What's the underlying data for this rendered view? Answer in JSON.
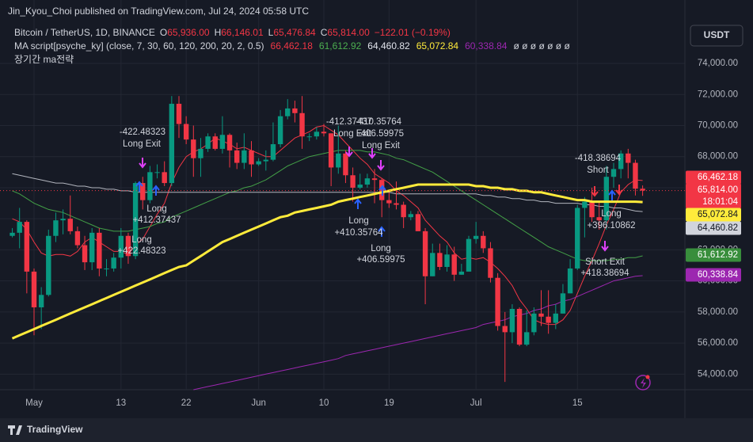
{
  "header": {
    "published": "Jin_Kyou_Choi published on TradingView.com, Jul 24, 2024 05:58 UTC",
    "symbol": "Bitcoin / TetherUS, 1D, BINANCE",
    "o_label": "O",
    "o": "65,936.00",
    "h_label": "H",
    "h": "66,146.01",
    "l_label": "L",
    "l": "65,476.84",
    "c_label": "C",
    "c": "65,814.00",
    "change": "−122.01 (−0.19%)",
    "indicator": "MA script[psyche_ky] (close, 7, 30, 60, 120, 200, 20, 2, 0.5)",
    "ind_values": [
      "66,462.18",
      "61,612.92",
      "64,460.82",
      "65,072.84",
      "60,338.84"
    ],
    "ind_empty": "ø ø ø ø ø ø ø",
    "strategy": "장기간 ma전략",
    "currency": "USDT",
    "countdown": "18:01:04",
    "brand": "TradingView"
  },
  "chart_data": {
    "type": "candlestick",
    "categories": [
      null,
      null,
      null,
      "May",
      null,
      null,
      null,
      null,
      null,
      null,
      null,
      null,
      null,
      null,
      null,
      "13",
      null,
      null,
      null,
      null,
      null,
      null,
      null,
      null,
      "22",
      null,
      null,
      null,
      null,
      null,
      null,
      null,
      null,
      null,
      "Jun",
      null,
      null,
      null,
      null,
      null,
      null,
      null,
      null,
      "10",
      null,
      null,
      null,
      null,
      null,
      null,
      null,
      null,
      "19",
      null,
      null,
      null,
      null,
      null,
      null,
      null,
      null,
      null,
      null,
      null,
      "Jul",
      null,
      null,
      null,
      null,
      null,
      null,
      null,
      null,
      null,
      null,
      null,
      null,
      null,
      "15",
      null,
      null,
      null,
      null,
      null,
      null,
      null,
      null,
      null
    ],
    "open": [
      62900,
      63100,
      63800,
      60600,
      58300,
      59100,
      62900,
      63900,
      64000,
      63200,
      62300,
      61200,
      63100,
      60800,
      60800,
      61500,
      62900,
      61600,
      66300,
      65200,
      67000,
      67000,
      66300,
      71400,
      70100,
      69100,
      67900,
      68500,
      69300,
      68500,
      69400,
      68400,
      67600,
      68400,
      67500,
      67700,
      67800,
      68800,
      70600,
      71100,
      70800,
      69300,
      69300,
      69600,
      69500,
      67300,
      68200,
      66800,
      66000,
      66200,
      66600,
      66500,
      65200,
      65000,
      64900,
      64100,
      64300,
      63200,
      60300,
      61800,
      60900,
      61700,
      60400,
      60600,
      62700,
      62900,
      62100,
      60200,
      57100,
      56700,
      58200,
      55900,
      56700,
      57900,
      57700,
      57300,
      57900,
      59200,
      60800,
      64700,
      65100,
      64100,
      63900,
      66700,
      67200,
      68200,
      67600,
      65936
    ],
    "high": [
      63400,
      64700,
      63900,
      60800,
      59600,
      63300,
      64400,
      64600,
      65500,
      63500,
      62900,
      63400,
      63400,
      61400,
      61800,
      63400,
      63100,
      66400,
      66700,
      67400,
      67500,
      67700,
      71900,
      71900,
      70600,
      70000,
      69200,
      69500,
      69500,
      70600,
      69500,
      68900,
      69500,
      69000,
      67900,
      68400,
      70200,
      71000,
      71700,
      71600,
      71900,
      69500,
      69900,
      70100,
      69500,
      70000,
      68400,
      67300,
      66900,
      66900,
      67200,
      66600,
      65700,
      66400,
      65100,
      64500,
      64500,
      63400,
      62400,
      62400,
      62300,
      62200,
      61100,
      62900,
      63800,
      63200,
      62500,
      60500,
      58000,
      58500,
      58300,
      58100,
      58300,
      59400,
      59400,
      58500,
      59800,
      61400,
      64900,
      65400,
      66000,
      65100,
      67400,
      67600,
      68400,
      68500,
      67800,
      66146.01
    ],
    "low": [
      62800,
      62100,
      59200,
      56500,
      56900,
      59000,
      62500,
      63000,
      63000,
      62100,
      60700,
      60700,
      60300,
      60300,
      60600,
      60800,
      61100,
      61400,
      64600,
      65000,
      66600,
      66100,
      66100,
      69200,
      68800,
      66700,
      66700,
      68300,
      68400,
      68200,
      67300,
      67200,
      67200,
      66700,
      67400,
      67100,
      67700,
      68600,
      70400,
      70200,
      68500,
      69000,
      69100,
      69300,
      66100,
      66900,
      66300,
      65100,
      65900,
      66000,
      65000,
      64100,
      64700,
      64600,
      63400,
      63900,
      63200,
      58500,
      60300,
      60700,
      60600,
      60000,
      60400,
      60600,
      62400,
      61800,
      59900,
      56800,
      53500,
      56000,
      55800,
      55800,
      56500,
      57100,
      56600,
      56900,
      57900,
      59200,
      60700,
      62800,
      63800,
      63300,
      63300,
      66000,
      66600,
      66600,
      65500,
      65476.84
    ],
    "close": [
      63100,
      63800,
      60600,
      58300,
      59100,
      62900,
      63900,
      64000,
      63200,
      62300,
      61200,
      63100,
      60800,
      60800,
      61500,
      62900,
      61600,
      66300,
      65200,
      67000,
      67000,
      66300,
      71400,
      70100,
      69100,
      67900,
      68500,
      69300,
      68500,
      69400,
      68400,
      67600,
      68400,
      67500,
      67700,
      67800,
      68800,
      70600,
      71100,
      70800,
      69300,
      69300,
      69600,
      69500,
      67300,
      68200,
      66800,
      66000,
      66200,
      66600,
      66500,
      65200,
      65000,
      64900,
      64100,
      64300,
      63200,
      60300,
      61800,
      60900,
      61700,
      60400,
      60600,
      62700,
      62900,
      62100,
      60200,
      57100,
      56700,
      58200,
      55900,
      56700,
      57900,
      57700,
      57300,
      57900,
      59200,
      60800,
      64700,
      65100,
      64100,
      63900,
      66700,
      67200,
      68200,
      67600,
      65936,
      65814
    ],
    "up_color": "#089981",
    "down_color": "#f23645",
    "lines": [
      {
        "color": "#f23645",
        "width": 1,
        "values": [
          64000,
          63800,
          63300,
          62500,
          61800,
          61600,
          61700,
          61700,
          61600,
          61900,
          62500,
          62800,
          62500,
          62200,
          61900,
          61900,
          61700,
          62300,
          62700,
          63500,
          64300,
          65000,
          66300,
          67300,
          68000,
          68300,
          68500,
          68800,
          69200,
          69000,
          68800,
          68500,
          68600,
          68400,
          68200,
          68000,
          68000,
          68400,
          68800,
          69200,
          69400,
          69600,
          69900,
          70000,
          69700,
          69400,
          68900,
          68400,
          67900,
          67500,
          66900,
          66600,
          66300,
          65800,
          65500,
          65100,
          64700,
          63900,
          63400,
          62900,
          62500,
          61800,
          61400,
          61500,
          61400,
          61500,
          61200,
          60800,
          60300,
          59700,
          58800,
          58200,
          57500,
          57300,
          57200,
          57200,
          57500,
          58100,
          59200,
          60300,
          61300,
          62400,
          63600,
          64600,
          65700,
          66200,
          66500,
          66462.18
        ]
      },
      {
        "color": "#43a047",
        "width": 1,
        "values": [
          65800,
          65600,
          65300,
          65000,
          64800,
          64600,
          64500,
          64400,
          64200,
          64000,
          63800,
          63600,
          63400,
          63300,
          63200,
          63200,
          63200,
          63300,
          63400,
          63500,
          63700,
          63800,
          64100,
          64300,
          64500,
          64700,
          64900,
          65100,
          65300,
          65500,
          65700,
          65800,
          66000,
          66100,
          66300,
          66500,
          66800,
          67100,
          67400,
          67600,
          67800,
          68000,
          68100,
          68200,
          68300,
          68400,
          68400,
          68400,
          68400,
          68300,
          68300,
          68200,
          68100,
          67900,
          67800,
          67600,
          67400,
          67200,
          67000,
          66700,
          66400,
          66100,
          65800,
          65500,
          65200,
          64900,
          64600,
          64300,
          64000,
          63700,
          63400,
          63100,
          62800,
          62500,
          62200,
          62000,
          61800,
          61600,
          61400,
          61300,
          61300,
          61300,
          61300,
          61400,
          61400,
          61500,
          61500,
          61612.92
        ]
      },
      {
        "color": "#b2b5be",
        "width": 1,
        "values": [
          66900,
          66800,
          66700,
          66600,
          66500,
          66400,
          66300,
          66300,
          66200,
          66100,
          66100,
          66000,
          66000,
          65900,
          65900,
          65800,
          65800,
          65700,
          65700,
          65700,
          65700,
          65700,
          65700,
          65700,
          65700,
          65700,
          65700,
          65700,
          65700,
          65700,
          65700,
          65700,
          65700,
          65700,
          65700,
          65700,
          65700,
          65700,
          65700,
          65700,
          65700,
          65700,
          65700,
          65700,
          65700,
          65700,
          65700,
          65700,
          65700,
          65700,
          65700,
          65700,
          65700,
          65600,
          65600,
          65600,
          65600,
          65600,
          65600,
          65600,
          65600,
          65600,
          65600,
          65600,
          65600,
          65500,
          65500,
          65400,
          65400,
          65300,
          65300,
          65200,
          65200,
          65100,
          65100,
          65000,
          65000,
          65000,
          65000,
          64900,
          64900,
          64800,
          64800,
          64700,
          64700,
          64600,
          64500,
          64460.82
        ]
      },
      {
        "color": "#ffeb3b",
        "width": 3,
        "values": [
          56300,
          56500,
          56700,
          56900,
          57100,
          57300,
          57500,
          57700,
          57900,
          58100,
          58300,
          58500,
          58700,
          58900,
          59100,
          59300,
          59500,
          59700,
          59900,
          60100,
          60300,
          60500,
          60700,
          60900,
          61000,
          61300,
          61600,
          61900,
          62200,
          62500,
          62700,
          62900,
          63100,
          63300,
          63500,
          63700,
          63900,
          64100,
          64200,
          64400,
          64500,
          64600,
          64700,
          64800,
          64900,
          65100,
          65200,
          65300,
          65400,
          65500,
          65600,
          65700,
          65800,
          65900,
          66000,
          66100,
          66200,
          66200,
          66200,
          66200,
          66200,
          66200,
          66200,
          66200,
          66100,
          66100,
          66000,
          66000,
          65900,
          65900,
          65800,
          65800,
          65700,
          65700,
          65600,
          65500,
          65400,
          65300,
          65200,
          65200,
          65100,
          65100,
          65100,
          65100,
          65100,
          65100,
          65100,
          65072.84
        ]
      },
      {
        "color": "#9c27b0",
        "width": 1,
        "values": [
          null,
          null,
          null,
          null,
          null,
          null,
          null,
          null,
          null,
          null,
          null,
          null,
          null,
          null,
          null,
          null,
          null,
          null,
          null,
          null,
          null,
          null,
          null,
          null,
          null,
          53000,
          53100,
          53200,
          53300,
          53400,
          53500,
          53600,
          53700,
          53800,
          53900,
          54000,
          54100,
          54200,
          54300,
          54400,
          54500,
          54600,
          54700,
          54800,
          54900,
          55000,
          55200,
          55300,
          55400,
          55500,
          55600,
          55700,
          55800,
          55900,
          56000,
          56100,
          56200,
          56300,
          56400,
          56500,
          56600,
          56700,
          56800,
          56900,
          57000,
          57200,
          57300,
          57400,
          57500,
          57700,
          57800,
          57900,
          58100,
          58200,
          58400,
          58500,
          58700,
          58800,
          59000,
          59200,
          59400,
          59600,
          59800,
          60000,
          60100,
          60200,
          60300,
          60338.84
        ]
      }
    ],
    "ylim": [
      53100,
      76550
    ],
    "yticks": [
      {
        "value": 54000,
        "label": "54,000.00"
      },
      {
        "value": 56000,
        "label": "56,000.00"
      },
      {
        "value": 58000,
        "label": "58,000.00"
      },
      {
        "value": 60000,
        "label": "60,000.00"
      },
      {
        "value": 62000,
        "label": "62,000.00"
      },
      {
        "value": 64000,
        "label": "64,000.00"
      },
      {
        "value": 66000,
        "label": "66,000.00"
      },
      {
        "value": 68000,
        "label": "68,000.00"
      },
      {
        "value": 70000,
        "label": "70,000.00"
      },
      {
        "value": 72000,
        "label": "72,000.00"
      },
      {
        "value": 74000,
        "label": "74,000.00"
      }
    ],
    "price_badges": [
      {
        "value": 66462.18,
        "label": "66,462.18",
        "color": "#f23645"
      },
      {
        "value": 65814,
        "label": "65,814.00",
        "color": "#f23645"
      },
      {
        "value": 65072.84,
        "label": "65,072.84",
        "color": "#ffeb3b"
      },
      {
        "value": 64460.82,
        "label": "64,460.82",
        "color": "#d1d4dc"
      },
      {
        "value": 61612.92,
        "label": "61,612.92",
        "color": "#388e3c"
      },
      {
        "value": 60338.84,
        "label": "60,338.84",
        "color": "#9c27b0"
      }
    ],
    "annotations": [
      "-422.48323",
      "Long Exit",
      "Long",
      "+412.37437",
      "Long",
      "+422.48323",
      "-412.37437",
      "-410.35764",
      "Long Exit",
      "-406.59975",
      "Long Exit",
      "Long",
      "+410.35764",
      "Long",
      "+406.59975",
      "-418.38694",
      "Short",
      "Long",
      "+396.10862",
      "Short Exit",
      "+418.38694"
    ]
  }
}
